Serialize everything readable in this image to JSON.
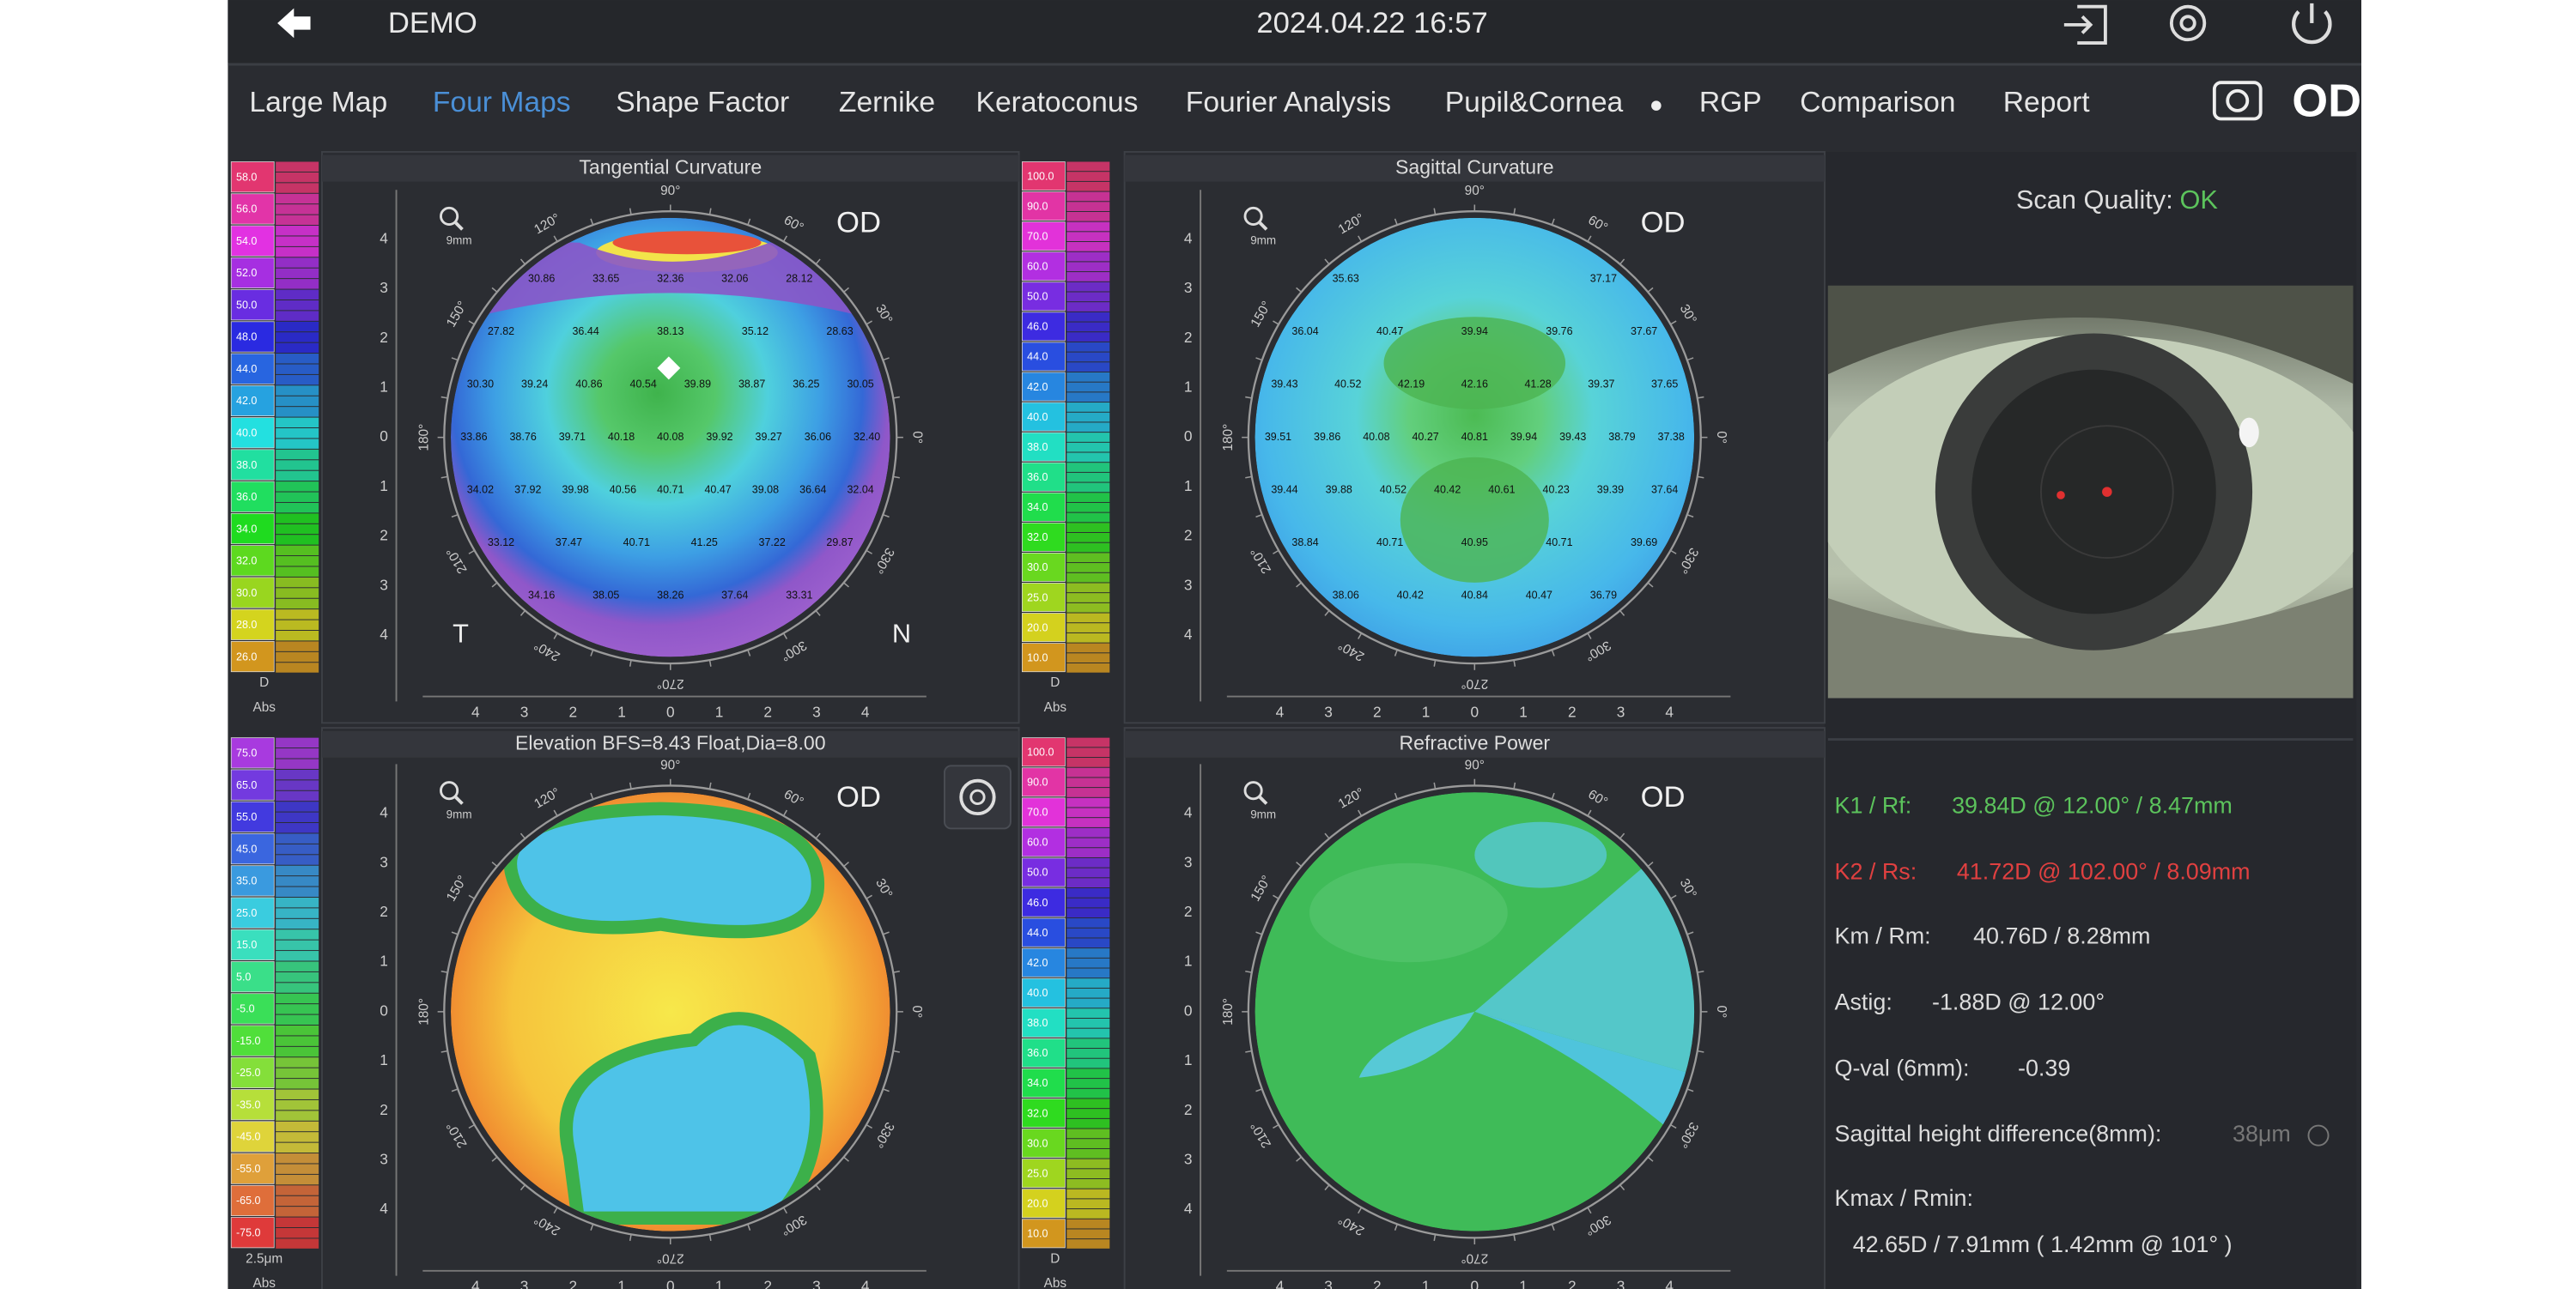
{
  "header": {
    "user": "DEMO",
    "datetime": "2024.04.22 16:57"
  },
  "tabs": [
    "Large Map",
    "Four Maps",
    "Shape Factor",
    "Zernike",
    "Keratoconus",
    "Fourier Analysis",
    "Pupil&Cornea",
    "RGP",
    "Comparison",
    "Report"
  ],
  "eye": "OD",
  "polar_labels": [
    "90°",
    "120°",
    "150°",
    "180°",
    "210°",
    "240°",
    "270°",
    "300°",
    "330°",
    "0°",
    "30°",
    "60°"
  ],
  "axis_ticks": [
    "4",
    "3",
    "2",
    "1",
    "0",
    "1",
    "2",
    "3",
    "4"
  ],
  "maps": [
    {
      "title": "Tangential Curvature",
      "eye_label": "OD",
      "zoom": "9mm",
      "sides": [
        "T",
        "N"
      ],
      "values": [
        [
          "30.86",
          "33.65",
          "32.36",
          "32.06",
          "28.12"
        ],
        [
          "27.82",
          "36.44",
          "38.13",
          "35.12",
          "28.63"
        ],
        [
          "30.30",
          "39.24",
          "40.86",
          "40.54",
          "39.89",
          "38.87",
          "36.25",
          "30.05"
        ],
        [
          "33.86",
          "38.76",
          "39.71",
          "40.18",
          "40.08",
          "39.92",
          "39.27",
          "36.06",
          "32.40"
        ],
        [
          "34.02",
          "37.92",
          "39.98",
          "40.56",
          "40.71",
          "40.47",
          "39.08",
          "36.64",
          "32.04"
        ],
        [
          "33.12",
          "37.47",
          "40.71",
          "41.25",
          "37.22",
          "29.87"
        ],
        [
          "34.16",
          "38.05",
          "38.26",
          "37.64",
          "33.31"
        ]
      ]
    },
    {
      "title": "Sagittal Curvature",
      "eye_label": "OD",
      "zoom": "9mm",
      "values": [
        [
          "35.63",
          "37.17"
        ],
        [
          "36.04",
          "40.47",
          "39.94",
          "39.76",
          "37.67"
        ],
        [
          "39.43",
          "40.52",
          "42.19",
          "42.16",
          "41.28",
          "39.37",
          "37.65"
        ],
        [
          "39.51",
          "39.86",
          "40.08",
          "40.27",
          "40.81",
          "39.94",
          "39.43",
          "38.79",
          "37.38"
        ],
        [
          "39.44",
          "39.88",
          "40.52",
          "40.42",
          "40.61",
          "40.23",
          "39.39",
          "37.64"
        ],
        [
          "38.84",
          "40.71",
          "40.95",
          "40.71",
          "39.69"
        ],
        [
          "38.06",
          "40.42",
          "40.84",
          "40.47",
          "36.79"
        ]
      ]
    },
    {
      "title": "Elevation BFS=8.43 Float,Dia=8.00",
      "eye_label": "OD",
      "zoom": "9mm"
    },
    {
      "title": "Refractive Power",
      "eye_label": "OD",
      "zoom": "9mm"
    }
  ],
  "scales": [
    {
      "labels": [
        "58.0",
        "56.0",
        "54.0",
        "52.0",
        "50.0",
        "48.0",
        "44.0",
        "42.0",
        "40.0",
        "38.0",
        "36.0",
        "34.0",
        "32.0",
        "30.0",
        "28.0",
        "26.0"
      ],
      "unit": "D",
      "mode": "Abs"
    },
    {
      "labels": [
        "100.0",
        "90.0",
        "70.0",
        "60.0",
        "50.0",
        "46.0",
        "44.0",
        "42.0",
        "40.0",
        "38.0",
        "36.0",
        "34.0",
        "32.0",
        "30.0",
        "25.0",
        "20.0",
        "10.0"
      ],
      "unit": "D",
      "mode": "Abs"
    },
    {
      "labels": [
        "75.0",
        "65.0",
        "55.0",
        "45.0",
        "35.0",
        "25.0",
        "15.0",
        "5.0",
        "-5.0",
        "-15.0",
        "-25.0",
        "-35.0",
        "-45.0",
        "-55.0",
        "-65.0",
        "-75.0"
      ],
      "unit": "2.5μm",
      "mode": "Abs"
    },
    {
      "labels": [
        "100.0",
        "90.0",
        "70.0",
        "60.0",
        "50.0",
        "46.0",
        "44.0",
        "42.0",
        "40.0",
        "38.0",
        "36.0",
        "34.0",
        "32.0",
        "30.0",
        "25.0",
        "20.0",
        "10.0"
      ],
      "unit": "D",
      "mode": "Abs"
    }
  ],
  "right_panel": {
    "scan_quality_label": "Scan Quality:",
    "scan_quality_value": "OK",
    "lines": [
      {
        "label": "K1 / Rf:",
        "value": "39.84D @ 12.00° / 8.47mm"
      },
      {
        "label": "K2 / Rs:",
        "value": "41.72D @ 102.00° / 8.09mm"
      },
      {
        "label": "Km / Rm:",
        "value": "40.76D / 8.28mm"
      },
      {
        "label": "Astig:",
        "value": "-1.88D @ 12.00°"
      },
      {
        "label": "Q-val (6mm):",
        "value": "-0.39"
      },
      {
        "label": "Sagittal height difference(8mm):",
        "value": "38μm"
      },
      {
        "label": "Kmax / Rmin:",
        "value": "42.65D / 7.91mm ( 1.42mm @ 101° )"
      }
    ]
  }
}
